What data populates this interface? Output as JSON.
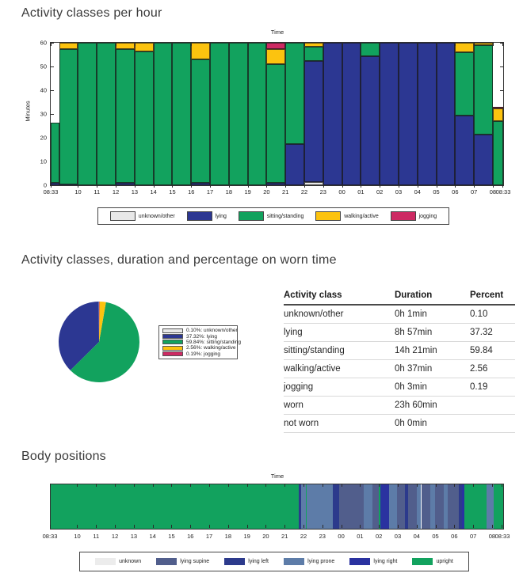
{
  "sections": {
    "hourly_title": "Activity classes per hour",
    "summary_title": "Activity classes, duration and percentage on worn time",
    "positions_title": "Body positions"
  },
  "chart_data": [
    {
      "id": "activity_per_hour",
      "type": "bar",
      "stacked": true,
      "xlabel": "Time",
      "ylabel": "Minutes",
      "ylim": [
        0,
        60
      ],
      "yticks": [
        0,
        10,
        20,
        30,
        40,
        50,
        60
      ],
      "x_start_hour": 8.55,
      "x_end_hour": 32.55,
      "xticks": [
        {
          "h": 8.55,
          "label": "08:33"
        },
        {
          "h": 10,
          "label": "10"
        },
        {
          "h": 11,
          "label": "11"
        },
        {
          "h": 12,
          "label": "12"
        },
        {
          "h": 13,
          "label": "13"
        },
        {
          "h": 14,
          "label": "14"
        },
        {
          "h": 15,
          "label": "15"
        },
        {
          "h": 16,
          "label": "16"
        },
        {
          "h": 17,
          "label": "17"
        },
        {
          "h": 18,
          "label": "18"
        },
        {
          "h": 19,
          "label": "19"
        },
        {
          "h": 20,
          "label": "20"
        },
        {
          "h": 21,
          "label": "21"
        },
        {
          "h": 22,
          "label": "22"
        },
        {
          "h": 23,
          "label": "23"
        },
        {
          "h": 24,
          "label": "00"
        },
        {
          "h": 25,
          "label": "01"
        },
        {
          "h": 26,
          "label": "02"
        },
        {
          "h": 27,
          "label": "03"
        },
        {
          "h": 28,
          "label": "04"
        },
        {
          "h": 29,
          "label": "05"
        },
        {
          "h": 30,
          "label": "06"
        },
        {
          "h": 31,
          "label": "07"
        },
        {
          "h": 32,
          "label": "08"
        },
        {
          "h": 32.55,
          "label": "08:33"
        }
      ],
      "classes": [
        {
          "name": "unknown/other",
          "color": "#e8e8e8"
        },
        {
          "name": "lying",
          "color": "#2c3792"
        },
        {
          "name": "sitting/standing",
          "color": "#12a25e"
        },
        {
          "name": "walking/active",
          "color": "#fcc30f"
        },
        {
          "name": "jogging",
          "color": "#cd2a63"
        }
      ],
      "bars": [
        {
          "start": 8.55,
          "end": 9,
          "segments": [
            [
              "lying",
              1
            ],
            [
              "sitting/standing",
              25.5
            ]
          ]
        },
        {
          "start": 9,
          "end": 10,
          "segments": [
            [
              "lying",
              0.5
            ],
            [
              "sitting/standing",
              57
            ],
            [
              "walking/active",
              2.5
            ]
          ]
        },
        {
          "start": 10,
          "end": 11,
          "segments": [
            [
              "sitting/standing",
              60
            ]
          ]
        },
        {
          "start": 11,
          "end": 12,
          "segments": [
            [
              "sitting/standing",
              60
            ]
          ]
        },
        {
          "start": 12,
          "end": 13,
          "segments": [
            [
              "lying",
              1
            ],
            [
              "sitting/standing",
              56.5
            ],
            [
              "walking/active",
              2.5
            ]
          ]
        },
        {
          "start": 13,
          "end": 14,
          "segments": [
            [
              "sitting/standing",
              56.5
            ],
            [
              "walking/active",
              3.5
            ]
          ]
        },
        {
          "start": 14,
          "end": 15,
          "segments": [
            [
              "sitting/standing",
              60
            ]
          ]
        },
        {
          "start": 15,
          "end": 16,
          "segments": [
            [
              "sitting/standing",
              60
            ]
          ]
        },
        {
          "start": 16,
          "end": 17,
          "segments": [
            [
              "lying",
              1
            ],
            [
              "sitting/standing",
              52
            ],
            [
              "walking/active",
              7
            ]
          ]
        },
        {
          "start": 17,
          "end": 18,
          "segments": [
            [
              "sitting/standing",
              60
            ]
          ]
        },
        {
          "start": 18,
          "end": 19,
          "segments": [
            [
              "sitting/standing",
              60
            ]
          ]
        },
        {
          "start": 19,
          "end": 20,
          "segments": [
            [
              "sitting/standing",
              60
            ]
          ]
        },
        {
          "start": 20,
          "end": 21,
          "segments": [
            [
              "lying",
              1
            ],
            [
              "sitting/standing",
              50
            ],
            [
              "walking/active",
              6.5
            ],
            [
              "jogging",
              2.5
            ]
          ]
        },
        {
          "start": 21,
          "end": 22,
          "segments": [
            [
              "lying",
              17.5
            ],
            [
              "sitting/standing",
              42.5
            ]
          ]
        },
        {
          "start": 22,
          "end": 23,
          "segments": [
            [
              "unknown/other",
              1.5
            ],
            [
              "lying",
              51
            ],
            [
              "sitting/standing",
              6
            ],
            [
              "walking/active",
              1.5
            ]
          ]
        },
        {
          "start": 23,
          "end": 24,
          "segments": [
            [
              "lying",
              60
            ]
          ]
        },
        {
          "start": 24,
          "end": 25,
          "segments": [
            [
              "lying",
              60
            ]
          ]
        },
        {
          "start": 25,
          "end": 26,
          "segments": [
            [
              "lying",
              54.5
            ],
            [
              "sitting/standing",
              5.5
            ]
          ]
        },
        {
          "start": 26,
          "end": 27,
          "segments": [
            [
              "lying",
              60
            ]
          ]
        },
        {
          "start": 27,
          "end": 28,
          "segments": [
            [
              "lying",
              60
            ]
          ]
        },
        {
          "start": 28,
          "end": 29,
          "segments": [
            [
              "lying",
              60
            ]
          ]
        },
        {
          "start": 29,
          "end": 30,
          "segments": [
            [
              "lying",
              60
            ]
          ]
        },
        {
          "start": 30,
          "end": 31,
          "segments": [
            [
              "lying",
              29.5
            ],
            [
              "sitting/standing",
              26.5
            ],
            [
              "walking/active",
              4
            ]
          ]
        },
        {
          "start": 31,
          "end": 32,
          "segments": [
            [
              "lying",
              21.5
            ],
            [
              "sitting/standing",
              37.5
            ],
            [
              "walking/active",
              1
            ]
          ]
        },
        {
          "start": 32,
          "end": 32.55,
          "segments": [
            [
              "sitting/standing",
              27
            ],
            [
              "walking/active",
              5.5
            ],
            [
              "jogging",
              0.5
            ]
          ]
        }
      ]
    },
    {
      "id": "activity_pie",
      "type": "pie",
      "slices": [
        {
          "name": "unknown/other",
          "percent": 0.1,
          "pct_label": "0.10%",
          "color": "#e8e8e8"
        },
        {
          "name": "lying",
          "percent": 37.32,
          "pct_label": "37.32%",
          "color": "#2c3792"
        },
        {
          "name": "sitting/standing",
          "percent": 59.84,
          "pct_label": "59.84%",
          "color": "#12a25e"
        },
        {
          "name": "walking/active",
          "percent": 2.56,
          "pct_label": "2.56%",
          "color": "#fcc30f"
        },
        {
          "name": "jogging",
          "percent": 0.19,
          "pct_label": "0.19%",
          "color": "#cd2a63"
        }
      ],
      "start_angle": "top",
      "direction": "counterclockwise"
    },
    {
      "id": "summary_table",
      "type": "table",
      "headers": [
        "Activity class",
        "Duration",
        "Percent"
      ],
      "rows": [
        [
          "unknown/other",
          "0h 1min",
          "0.10"
        ],
        [
          "lying",
          "8h 57min",
          "37.32"
        ],
        [
          "sitting/standing",
          "14h 21min",
          "59.84"
        ],
        [
          "walking/active",
          "0h 37min",
          "2.56"
        ],
        [
          "jogging",
          "0h 3min",
          "0.19"
        ],
        [
          "worn",
          "23h 60min",
          ""
        ],
        [
          "not worn",
          "0h 0min",
          ""
        ]
      ]
    },
    {
      "id": "body_positions",
      "type": "timeline",
      "xlabel": "Time",
      "x_start_hour": 8.55,
      "x_end_hour": 32.55,
      "classes": [
        {
          "name": "unknown",
          "color": "#ececec"
        },
        {
          "name": "lying supine",
          "color": "#515e8c"
        },
        {
          "name": "lying left",
          "color": "#2c3a8c"
        },
        {
          "name": "lying prone",
          "color": "#5d7ca8"
        },
        {
          "name": "lying right",
          "color": "#2a32a0"
        },
        {
          "name": "upright",
          "color": "#12a25e"
        }
      ],
      "segments": [
        {
          "start": 8.55,
          "end": 21.7,
          "class": "upright"
        },
        {
          "start": 21.7,
          "end": 21.85,
          "class": "lying left"
        },
        {
          "start": 21.85,
          "end": 22.07,
          "class": "lying prone"
        },
        {
          "start": 22.07,
          "end": 22.12,
          "class": "upright"
        },
        {
          "start": 22.12,
          "end": 23.5,
          "class": "lying prone"
        },
        {
          "start": 23.5,
          "end": 23.85,
          "class": "lying left"
        },
        {
          "start": 23.85,
          "end": 25.15,
          "class": "lying supine"
        },
        {
          "start": 25.15,
          "end": 25.6,
          "class": "lying prone"
        },
        {
          "start": 25.6,
          "end": 25.95,
          "class": "lying supine"
        },
        {
          "start": 25.95,
          "end": 26.02,
          "class": "upright"
        },
        {
          "start": 26.02,
          "end": 26.5,
          "class": "lying right"
        },
        {
          "start": 26.5,
          "end": 26.9,
          "class": "lying prone"
        },
        {
          "start": 26.9,
          "end": 27.35,
          "class": "lying supine"
        },
        {
          "start": 27.35,
          "end": 27.5,
          "class": "lying left"
        },
        {
          "start": 27.5,
          "end": 27.95,
          "class": "lying supine"
        },
        {
          "start": 27.95,
          "end": 28.2,
          "class": "lying prone"
        },
        {
          "start": 28.2,
          "end": 28.7,
          "class": "lying supine"
        },
        {
          "start": 28.7,
          "end": 28.95,
          "class": "lying prone"
        },
        {
          "start": 28.95,
          "end": 29.4,
          "class": "lying supine"
        },
        {
          "start": 29.4,
          "end": 29.6,
          "class": "lying prone"
        },
        {
          "start": 29.6,
          "end": 30.2,
          "class": "lying supine"
        },
        {
          "start": 30.2,
          "end": 30.35,
          "class": "lying left"
        },
        {
          "start": 30.35,
          "end": 30.5,
          "class": "lying right"
        },
        {
          "start": 30.5,
          "end": 31.65,
          "class": "upright"
        },
        {
          "start": 31.65,
          "end": 32.03,
          "class": "lying prone"
        },
        {
          "start": 32.03,
          "end": 32.55,
          "class": "upright"
        }
      ]
    }
  ]
}
